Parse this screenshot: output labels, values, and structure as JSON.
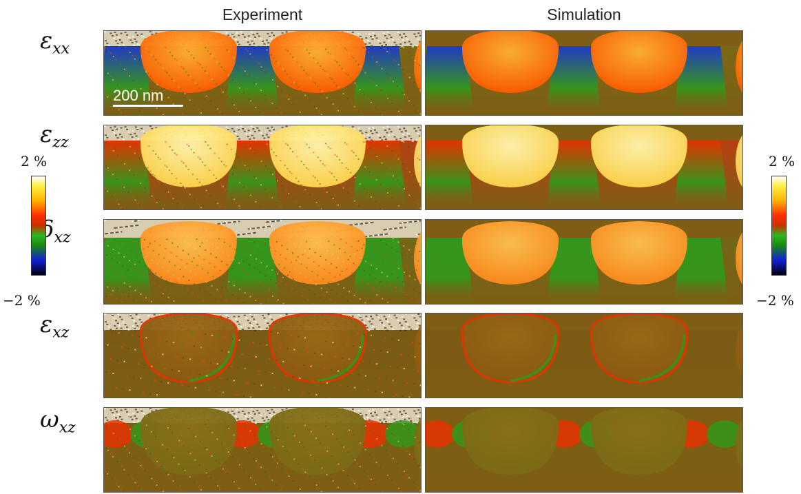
{
  "columns": {
    "experiment": "Experiment",
    "simulation": "Simulation"
  },
  "rows": [
    {
      "id": "exx",
      "symbol": "ε",
      "subscript": "xx"
    },
    {
      "id": "ezz",
      "symbol": "ε",
      "subscript": "zz"
    },
    {
      "id": "dxz",
      "symbol": "δ",
      "subscript": "xz"
    },
    {
      "id": "exz",
      "symbol": "ε",
      "subscript": "xz"
    },
    {
      "id": "wxz",
      "symbol": "ω",
      "subscript": "xz"
    }
  ],
  "colorbar": {
    "max_label": "2 %",
    "min_label": "−2 %"
  },
  "scale_bar": {
    "label": "200 nm"
  },
  "colors": {
    "background_brown": "#7e5e14",
    "noise_top": "#d8cdb0",
    "red": "#e63200",
    "orange": "#ff8a10",
    "yellow": "#ffe040",
    "green": "#2f9a1c",
    "blue": "#1836d8"
  }
}
